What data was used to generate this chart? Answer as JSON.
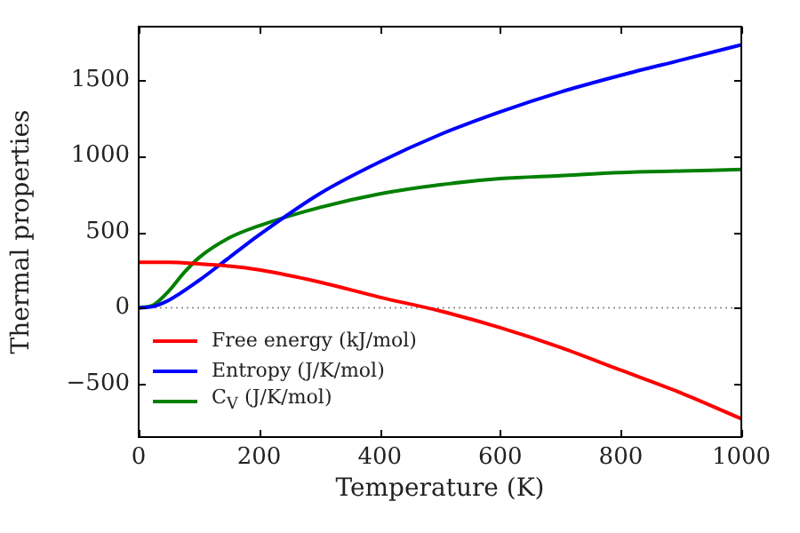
{
  "chart_data": {
    "type": "line",
    "xlabel": "Temperature (K)",
    "ylabel": "Thermal properties",
    "xlim": [
      0,
      1000
    ],
    "xticks": [
      0,
      200,
      400,
      600,
      800,
      1000
    ],
    "ylim": [
      -850,
      1850
    ],
    "yticks": [
      -500,
      0,
      500,
      1000,
      1500
    ],
    "grid": false,
    "legend": "bottom left",
    "marker": "none",
    "line_style": "solid",
    "ref_lines": [
      {
        "axis": "y",
        "value": 0,
        "color": "#808080",
        "line_style": "dotted"
      }
    ],
    "series": [
      {
        "name": "Free energy (kJ/mol)",
        "color": "#ff0000",
        "x": [
          0,
          50,
          100,
          150,
          200,
          300,
          400,
          500,
          600,
          700,
          800,
          900,
          1000
        ],
        "values": [
          300,
          300,
          290,
          275,
          250,
          170,
          70,
          -20,
          -130,
          -260,
          -410,
          -560,
          -730
        ]
      },
      {
        "name": "Entropy (J/K/mol)",
        "color": "#0000ff",
        "x": [
          0,
          25,
          50,
          100,
          150,
          200,
          300,
          400,
          500,
          600,
          700,
          800,
          900,
          1000
        ],
        "values": [
          0,
          10,
          50,
          180,
          330,
          480,
          750,
          960,
          1140,
          1290,
          1420,
          1530,
          1630,
          1730
        ]
      },
      {
        "name": "C$_{V}$ (J/K/mol)",
        "color": "#008000",
        "x": [
          0,
          25,
          50,
          75,
          100,
          150,
          200,
          300,
          400,
          500,
          600,
          700,
          800,
          900,
          1000
        ],
        "values": [
          0,
          20,
          110,
          230,
          330,
          460,
          540,
          660,
          750,
          810,
          850,
          870,
          890,
          900,
          910
        ]
      }
    ]
  }
}
